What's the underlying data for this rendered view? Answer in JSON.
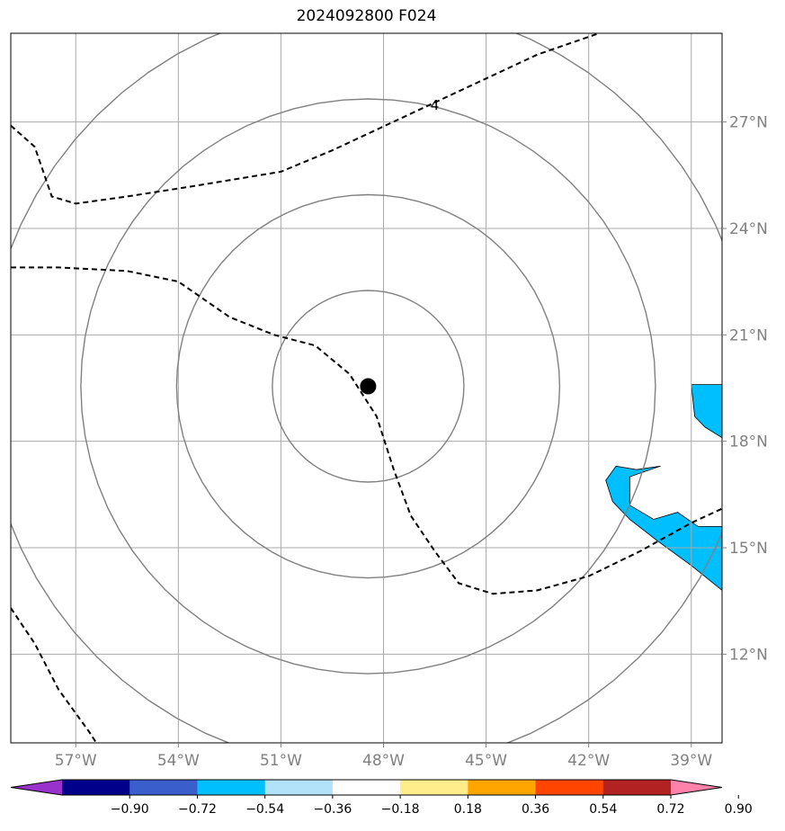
{
  "chart_data": {
    "type": "map",
    "title": "2024092800 F024",
    "projection": "geographic lat/lon",
    "lon_range": [
      -58.9,
      -38.1
    ],
    "lat_range": [
      9.5,
      29.5
    ],
    "grid": true,
    "lon_ticks": [
      -57,
      -54,
      -51,
      -48,
      -45,
      -42,
      -39
    ],
    "lon_tick_labels": [
      "57°W",
      "54°W",
      "51°W",
      "48°W",
      "45°W",
      "42°W",
      "39°W"
    ],
    "lat_ticks": [
      12,
      15,
      18,
      21,
      24,
      27
    ],
    "lat_tick_labels": [
      "12°N",
      "15°N",
      "18°N",
      "21°N",
      "24°N",
      "27°N"
    ],
    "center_marker": {
      "lon": -48.45,
      "lat": 19.55,
      "color": "#000000"
    },
    "range_rings_deg_lat": [
      2.7,
      5.4,
      8.1,
      10.8
    ],
    "contours": [
      {
        "style": "dashed",
        "label": "4",
        "label_at": [
          -46.5,
          27.5
        ],
        "points": [
          [
            -58.9,
            26.9
          ],
          [
            -58.2,
            26.3
          ],
          [
            -57.7,
            24.9
          ],
          [
            -57,
            24.7
          ],
          [
            -55.5,
            24.9
          ],
          [
            -53.5,
            25.2
          ],
          [
            -51,
            25.6
          ],
          [
            -49.5,
            26.2
          ],
          [
            -47.5,
            27.1
          ],
          [
            -45.5,
            28.0
          ],
          [
            -43.5,
            28.9
          ],
          [
            -41.7,
            29.5
          ]
        ]
      },
      {
        "style": "dashed",
        "points": [
          [
            -58.9,
            22.9
          ],
          [
            -57.5,
            22.9
          ],
          [
            -55.5,
            22.8
          ],
          [
            -54,
            22.5
          ],
          [
            -52.5,
            21.5
          ],
          [
            -51.2,
            21.0
          ],
          [
            -50,
            20.7
          ],
          [
            -49.0,
            19.9
          ],
          [
            -48.2,
            18.7
          ],
          [
            -47.7,
            17.2
          ],
          [
            -47.2,
            15.9
          ],
          [
            -46.5,
            14.9
          ],
          [
            -45.8,
            14.0
          ],
          [
            -44.8,
            13.7
          ],
          [
            -43.5,
            13.8
          ],
          [
            -42.0,
            14.2
          ],
          [
            -40.5,
            14.9
          ],
          [
            -39.0,
            15.7
          ],
          [
            -38.1,
            16.1
          ]
        ]
      },
      {
        "style": "dashed",
        "points": [
          [
            -58.9,
            13.3
          ],
          [
            -58.2,
            12.3
          ],
          [
            -57.5,
            11.0
          ],
          [
            -56.6,
            9.8
          ],
          [
            -56.4,
            9.5
          ]
        ]
      }
    ],
    "shaded_regions": [
      {
        "level": "-0.36",
        "color": "#00bfff",
        "points": [
          [
            -39.9,
            17.3
          ],
          [
            -40.8,
            17.0
          ],
          [
            -40.8,
            16.2
          ],
          [
            -40.1,
            15.8
          ],
          [
            -39.4,
            16.0
          ],
          [
            -38.8,
            15.6
          ],
          [
            -38.1,
            15.6
          ],
          [
            -38.1,
            13.8
          ],
          [
            -39.0,
            14.5
          ],
          [
            -40.0,
            15.2
          ],
          [
            -40.8,
            15.8
          ],
          [
            -41.3,
            16.3
          ],
          [
            -41.5,
            16.9
          ],
          [
            -41.2,
            17.3
          ],
          [
            -40.6,
            17.2
          ]
        ]
      },
      {
        "level": "-0.36",
        "color": "#00bfff",
        "points": [
          [
            -39.0,
            19.6
          ],
          [
            -38.1,
            19.6
          ],
          [
            -38.1,
            18.1
          ],
          [
            -38.6,
            18.4
          ],
          [
            -38.9,
            18.7
          ]
        ]
      }
    ],
    "colorbar": {
      "levels": [
        "−0.90",
        "−0.72",
        "−0.54",
        "−0.36",
        "−0.18",
        "0.18",
        "0.36",
        "0.54",
        "0.72",
        "0.90"
      ],
      "colors": [
        "#9932cc",
        "#00008b",
        "#3a5fcd",
        "#00bfff",
        "#b2e2fa",
        "#ffffff",
        "#ffec8b",
        "#ffa500",
        "#ff4500",
        "#b22222",
        "#ff82ab"
      ],
      "extend": "both",
      "orientation": "horizontal"
    }
  }
}
